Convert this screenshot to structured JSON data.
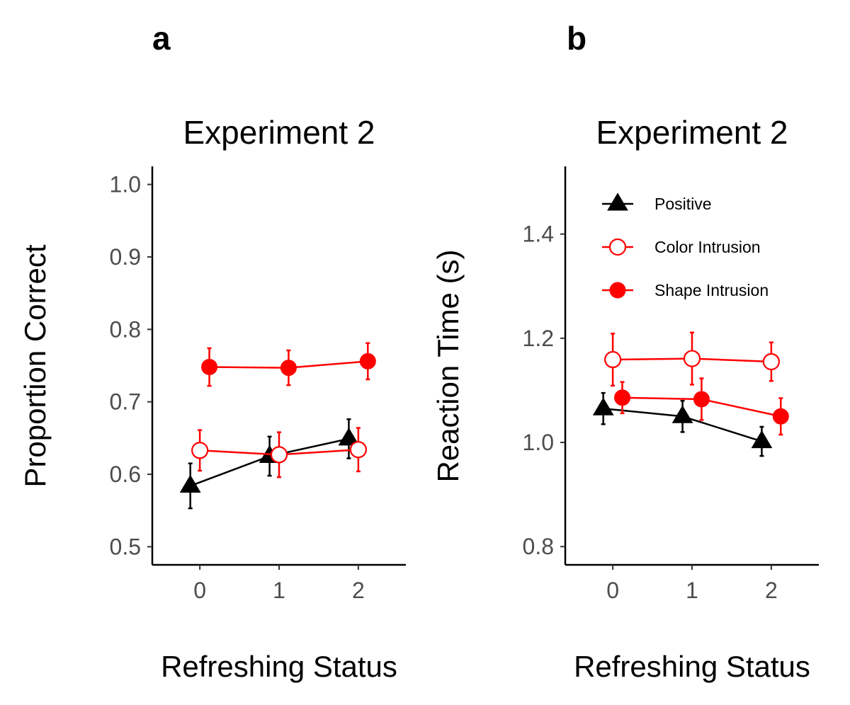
{
  "colors": {
    "positive": "#000000",
    "color_intrusion": "#ff0000",
    "shape_intrusion": "#ff0000",
    "tick_text": "#4d4d4d"
  },
  "chart_data": [
    {
      "panel": "a",
      "type": "line",
      "title": "Experiment 2",
      "xlabel": "Refreshing Status",
      "ylabel": "Proportion Correct",
      "x": [
        0,
        1,
        2
      ],
      "xlim": [
        -0.6,
        2.6
      ],
      "ylim": [
        0.475,
        1.025
      ],
      "yticks": [
        0.5,
        0.6,
        0.7,
        0.8,
        0.9,
        1.0
      ],
      "ytick_labels": [
        "0.5",
        "0.6",
        "0.7",
        "0.8",
        "0.9",
        "1.0"
      ],
      "xtick_labels": [
        "0",
        "1",
        "2"
      ],
      "dodge": 0.12,
      "series": [
        {
          "name": "Positive",
          "marker": "triangle",
          "color": "#000000",
          "offset": -1,
          "values": [
            0.584,
            0.625,
            0.649
          ],
          "err": [
            0.031,
            0.027,
            0.027
          ]
        },
        {
          "name": "Color Intrusion",
          "marker": "circle-open",
          "color": "#ff0000",
          "offset": 0,
          "values": [
            0.633,
            0.627,
            0.634
          ],
          "err": [
            0.028,
            0.031,
            0.03
          ]
        },
        {
          "name": "Shape Intrusion",
          "marker": "circle-filled",
          "color": "#ff0000",
          "offset": 1,
          "values": [
            0.748,
            0.747,
            0.756
          ],
          "err": [
            0.026,
            0.024,
            0.025
          ]
        }
      ]
    },
    {
      "panel": "b",
      "type": "line",
      "title": "Experiment 2",
      "xlabel": "Refreshing Status",
      "ylabel": "Reaction Time (s)",
      "x": [
        0,
        1,
        2
      ],
      "xlim": [
        -0.6,
        2.6
      ],
      "ylim": [
        0.765,
        1.53
      ],
      "yticks": [
        0.8,
        1.0,
        1.2,
        1.4
      ],
      "ytick_labels": [
        "0.8",
        "1.0",
        "1.2",
        "1.4"
      ],
      "xtick_labels": [
        "0",
        "1",
        "2"
      ],
      "dodge": 0.12,
      "legend": {
        "position": "top-left",
        "entries": [
          "Positive",
          "Color Intrusion",
          "Shape Intrusion"
        ]
      },
      "series": [
        {
          "name": "Positive",
          "marker": "triangle",
          "color": "#000000",
          "offset": -1,
          "values": [
            1.065,
            1.05,
            1.002
          ],
          "err": [
            0.03,
            0.03,
            0.028
          ]
        },
        {
          "name": "Color Intrusion",
          "marker": "circle-open",
          "color": "#ff0000",
          "offset": 0,
          "values": [
            1.159,
            1.161,
            1.155
          ],
          "err": [
            0.05,
            0.05,
            0.037
          ]
        },
        {
          "name": "Shape Intrusion",
          "marker": "circle-filled",
          "color": "#ff0000",
          "offset": 1,
          "values": [
            1.086,
            1.083,
            1.05
          ],
          "err": [
            0.03,
            0.04,
            0.035
          ]
        }
      ]
    }
  ]
}
